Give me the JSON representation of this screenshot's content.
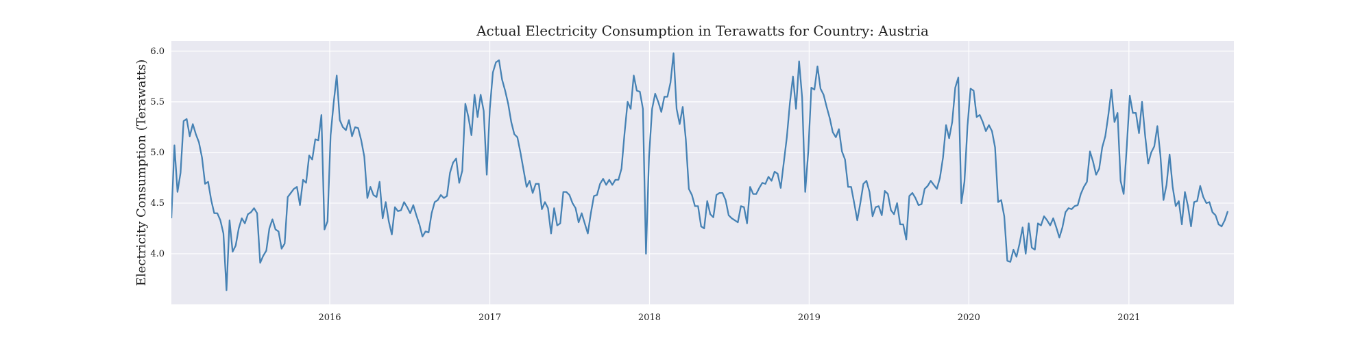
{
  "chart_data": {
    "type": "line",
    "title": "Actual Electricity Consumption in Terawatts for Country: Austria",
    "xlabel": "",
    "ylabel": "Electricity Consumption (Terawatts)",
    "xlim": [
      "2015-01-04",
      "2021-08-29"
    ],
    "ylim": [
      3.5,
      6.1
    ],
    "yticks": [
      4.0,
      4.5,
      5.0,
      5.5,
      6.0
    ],
    "ytick_labels": [
      "4.0",
      "4.5",
      "5.0",
      "5.5",
      "6.0"
    ],
    "xticks": [
      "2016-01-01",
      "2017-01-01",
      "2018-01-01",
      "2019-01-01",
      "2020-01-01",
      "2021-01-01"
    ],
    "xtick_labels": [
      "2016",
      "2017",
      "2018",
      "2019",
      "2020",
      "2021"
    ],
    "grid": true,
    "colors": {
      "line": "#4682b4",
      "plot_background": "#e9e9f1",
      "grid": "#ffffff"
    },
    "series": [
      {
        "frequency": "weekly",
        "x_start": "2015-01-04",
        "values": [
          4.35,
          5.07,
          4.61,
          4.8,
          5.31,
          5.33,
          5.16,
          5.28,
          5.18,
          5.1,
          4.95,
          4.69,
          4.71,
          4.53,
          4.4,
          4.4,
          4.33,
          4.2,
          3.64,
          4.33,
          4.02,
          4.08,
          4.25,
          4.35,
          4.3,
          4.39,
          4.41,
          4.45,
          4.4,
          3.91,
          3.98,
          4.03,
          4.25,
          4.34,
          4.24,
          4.22,
          4.05,
          4.1,
          4.56,
          4.6,
          4.64,
          4.66,
          4.48,
          4.73,
          4.7,
          4.97,
          4.93,
          5.13,
          5.12,
          5.37,
          4.24,
          4.32,
          5.17,
          5.49,
          5.76,
          5.32,
          5.25,
          5.22,
          5.32,
          5.16,
          5.25,
          5.24,
          5.12,
          4.96,
          4.55,
          4.66,
          4.58,
          4.56,
          4.71,
          4.35,
          4.51,
          4.32,
          4.19,
          4.46,
          4.42,
          4.43,
          4.51,
          4.46,
          4.4,
          4.48,
          4.38,
          4.29,
          4.17,
          4.22,
          4.21,
          4.4,
          4.51,
          4.53,
          4.58,
          4.55,
          4.57,
          4.8,
          4.9,
          4.94,
          4.7,
          4.82,
          5.48,
          5.35,
          5.17,
          5.57,
          5.35,
          5.57,
          5.41,
          4.78,
          5.43,
          5.79,
          5.89,
          5.91,
          5.72,
          5.61,
          5.48,
          5.3,
          5.18,
          5.15,
          5.0,
          4.83,
          4.66,
          4.72,
          4.6,
          4.69,
          4.69,
          4.44,
          4.51,
          4.45,
          4.2,
          4.45,
          4.28,
          4.3,
          4.61,
          4.61,
          4.58,
          4.5,
          4.45,
          4.31,
          4.4,
          4.3,
          4.2,
          4.4,
          4.57,
          4.58,
          4.69,
          4.74,
          4.68,
          4.73,
          4.68,
          4.73,
          4.73,
          4.84,
          5.19,
          5.5,
          5.43,
          5.76,
          5.61,
          5.6,
          5.43,
          4.0,
          4.96,
          5.43,
          5.58,
          5.5,
          5.4,
          5.55,
          5.55,
          5.69,
          5.98,
          5.43,
          5.28,
          5.45,
          5.13,
          4.64,
          4.58,
          4.47,
          4.47,
          4.27,
          4.25,
          4.52,
          4.39,
          4.36,
          4.58,
          4.6,
          4.6,
          4.53,
          4.38,
          4.35,
          4.33,
          4.31,
          4.47,
          4.46,
          4.3,
          4.66,
          4.59,
          4.59,
          4.65,
          4.7,
          4.69,
          4.76,
          4.72,
          4.81,
          4.79,
          4.65,
          4.9,
          5.15,
          5.49,
          5.75,
          5.43,
          5.9,
          5.54,
          4.61,
          5.01,
          5.64,
          5.62,
          5.85,
          5.63,
          5.57,
          5.45,
          5.34,
          5.2,
          5.15,
          5.23,
          5.01,
          4.93,
          4.66,
          4.66,
          4.5,
          4.33,
          4.5,
          4.69,
          4.72,
          4.61,
          4.37,
          4.46,
          4.47,
          4.38,
          4.62,
          4.59,
          4.43,
          4.39,
          4.5,
          4.29,
          4.29,
          4.14,
          4.57,
          4.6,
          4.55,
          4.48,
          4.49,
          4.64,
          4.67,
          4.72,
          4.68,
          4.64,
          4.75,
          4.95,
          5.27,
          5.14,
          5.3,
          5.64,
          5.74,
          4.5,
          4.71,
          5.26,
          5.63,
          5.61,
          5.35,
          5.37,
          5.3,
          5.21,
          5.27,
          5.21,
          5.05,
          4.51,
          4.53,
          4.37,
          3.93,
          3.92,
          4.04,
          3.97,
          4.1,
          4.26,
          4.0,
          4.3,
          4.06,
          4.04,
          4.3,
          4.28,
          4.37,
          4.33,
          4.28,
          4.35,
          4.26,
          4.16,
          4.26,
          4.41,
          4.45,
          4.44,
          4.47,
          4.48,
          4.59,
          4.66,
          4.71,
          5.01,
          4.91,
          4.78,
          4.84,
          5.05,
          5.16,
          5.37,
          5.62,
          5.3,
          5.39,
          4.72,
          4.59,
          5.05,
          5.56,
          5.39,
          5.39,
          5.19,
          5.5,
          5.17,
          4.89,
          5.0,
          5.06,
          5.26,
          4.97,
          4.53,
          4.68,
          4.98,
          4.66,
          4.47,
          4.52,
          4.29,
          4.61,
          4.47,
          4.27,
          4.51,
          4.52,
          4.67,
          4.56,
          4.5,
          4.51,
          4.41,
          4.38,
          4.29,
          4.27,
          4.33,
          4.42
        ]
      }
    ]
  }
}
